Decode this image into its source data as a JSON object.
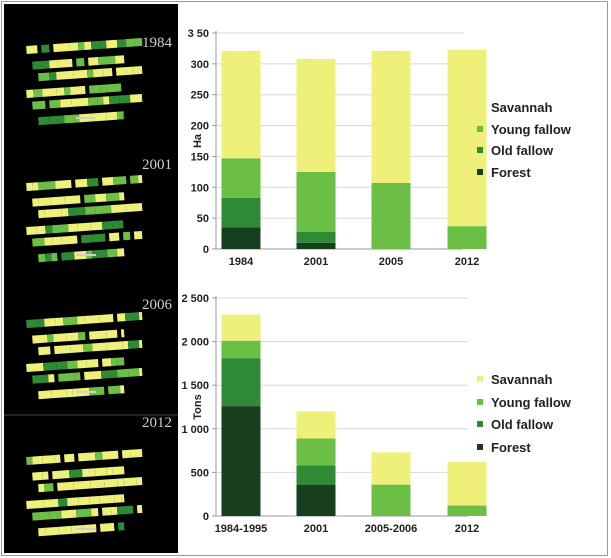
{
  "colors": {
    "savannah": "#eef07a",
    "young_fallow": "#6bbf44",
    "old_fallow": "#2e8a34",
    "forest": "#173f1d",
    "axis": "#9a9a9a",
    "grid": "#d8d8d8",
    "map_background": "#000000",
    "map_label": "#cfcfcf"
  },
  "maps": {
    "panels": [
      {
        "year": "1984"
      },
      {
        "year": "2001"
      },
      {
        "year": "2006"
      },
      {
        "year": "2012"
      }
    ]
  },
  "chart_data": [
    {
      "type": "bar",
      "stacked": true,
      "categories": [
        "1984",
        "2001",
        "2005",
        "2012"
      ],
      "ylabel": "Ha",
      "ylim": [
        0,
        350
      ],
      "ytick_labels": [
        "0",
        "50",
        "100",
        "150",
        "200",
        "250",
        "300",
        "3 50"
      ],
      "yticks": [
        0,
        50,
        100,
        150,
        200,
        250,
        300,
        350
      ],
      "legend_position": "right",
      "series": [
        {
          "name": "Forest",
          "color_key": "forest",
          "values": [
            35,
            10,
            0,
            0
          ]
        },
        {
          "name": "Old fallow",
          "color_key": "old_fallow",
          "values": [
            48,
            18,
            0,
            0
          ]
        },
        {
          "name": "Young fallow",
          "color_key": "young_fallow",
          "values": [
            64,
            97,
            107,
            37
          ]
        },
        {
          "name": "Savannah",
          "color_key": "savannah",
          "values": [
            174,
            183,
            214,
            286
          ]
        }
      ],
      "legend_order": [
        "Savannah",
        "Young fallow",
        "Old fallow",
        "Forest"
      ]
    },
    {
      "type": "bar",
      "stacked": true,
      "categories": [
        "1984-1995",
        "2001",
        "2005-2006",
        "2012"
      ],
      "ylabel": "Tons",
      "ylim": [
        0,
        2500
      ],
      "ytick_labels": [
        "0",
        "500",
        "1 000",
        "1 500",
        "2 000",
        "2 500"
      ],
      "yticks": [
        0,
        500,
        1000,
        1500,
        2000,
        2500
      ],
      "legend_position": "right",
      "series": [
        {
          "name": "Forest",
          "color_key": "forest",
          "values": [
            1260,
            360,
            0,
            0
          ]
        },
        {
          "name": "Old fallow",
          "color_key": "old_fallow",
          "values": [
            550,
            220,
            0,
            0
          ]
        },
        {
          "name": "Young fallow",
          "color_key": "young_fallow",
          "values": [
            200,
            310,
            360,
            120
          ]
        },
        {
          "name": "Savannah",
          "color_key": "savannah",
          "values": [
            300,
            310,
            370,
            500
          ]
        }
      ],
      "legend_order": [
        "Savannah",
        "Young fallow",
        "Old fallow",
        "Forest"
      ]
    }
  ]
}
